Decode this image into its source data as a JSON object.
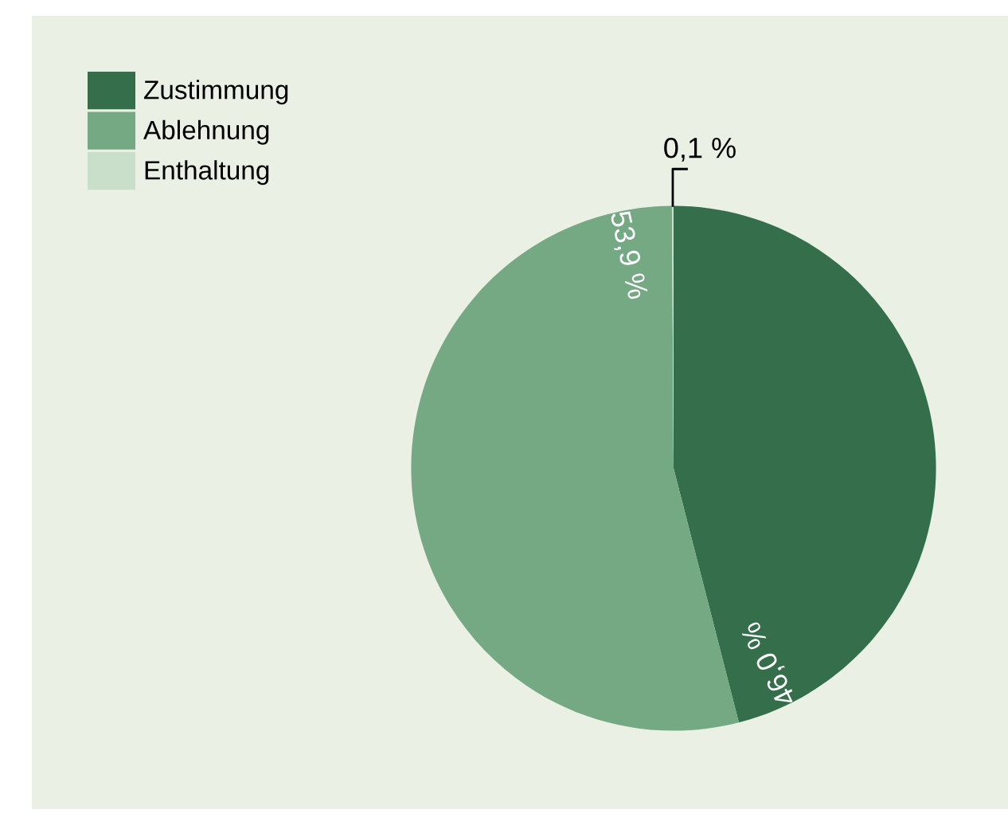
{
  "chart_data": {
    "type": "pie",
    "categories": [
      "Zustimmung",
      "Ablehnung",
      "Enthaltung"
    ],
    "values": [
      46.0,
      53.9,
      0.1
    ],
    "value_labels": [
      "46,0 %",
      "53,9 %",
      "0,1 %"
    ],
    "colors": [
      "#356e4b",
      "#74a983",
      "#c9dfca"
    ],
    "legend": "top left"
  }
}
